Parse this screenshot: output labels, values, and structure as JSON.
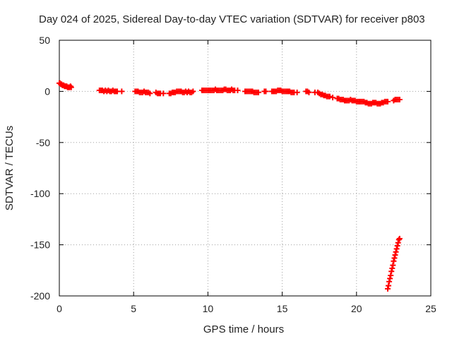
{
  "chart_data": {
    "type": "scatter",
    "title": "Day 024 of 2025, Sidereal Day-to-day VTEC variation (SDTVAR) for receiver p803",
    "xlabel": "GPS time / hours",
    "ylabel": "SDTVAR / TECUs",
    "xlim": [
      0,
      25
    ],
    "ylim": [
      -200,
      50
    ],
    "xticks": [
      0,
      5,
      10,
      15,
      20,
      25
    ],
    "xtick_labels": [
      "0",
      "5",
      "10",
      "15",
      "20",
      "25"
    ],
    "yticks": [
      50,
      0,
      -50,
      -100,
      -150,
      -200
    ],
    "ytick_labels": [
      "50",
      "0",
      "-50",
      "-100",
      "-150",
      "-200"
    ],
    "grid": true,
    "marker": "plus",
    "color": "#ff0000",
    "series": [
      {
        "name": "SDTVAR",
        "x": [
          0.0,
          0.05,
          0.1,
          0.15,
          0.2,
          0.25,
          0.3,
          0.35,
          0.4,
          0.45,
          0.5,
          0.55,
          0.6,
          0.65,
          0.7,
          0.75,
          0.8,
          2.7,
          2.8,
          2.9,
          3.0,
          3.1,
          3.2,
          3.3,
          3.4,
          3.5,
          3.6,
          3.7,
          3.8,
          3.9,
          4.2,
          5.1,
          5.2,
          5.3,
          5.4,
          5.5,
          5.6,
          5.7,
          5.8,
          5.9,
          6.0,
          6.1,
          6.5,
          6.6,
          6.7,
          6.8,
          7.0,
          7.4,
          7.5,
          7.6,
          7.7,
          7.8,
          7.9,
          8.0,
          8.1,
          8.2,
          8.3,
          8.4,
          8.5,
          8.6,
          8.7,
          8.8,
          8.9,
          9.0,
          9.6,
          9.7,
          9.8,
          9.9,
          10.0,
          10.1,
          10.2,
          10.3,
          10.4,
          10.5,
          10.6,
          10.7,
          10.8,
          10.9,
          11.0,
          11.1,
          11.2,
          11.3,
          11.4,
          11.5,
          11.6,
          11.7,
          11.8,
          12.0,
          12.5,
          12.6,
          12.7,
          12.8,
          12.9,
          13.0,
          13.1,
          13.2,
          13.3,
          13.4,
          13.8,
          13.9,
          14.3,
          14.4,
          14.5,
          14.6,
          14.7,
          14.8,
          14.9,
          15.0,
          15.1,
          15.2,
          15.3,
          15.4,
          15.5,
          15.6,
          15.7,
          15.8,
          16.0,
          16.6,
          16.7,
          16.8,
          17.2,
          17.4,
          17.5,
          17.6,
          17.7,
          17.8,
          17.9,
          18.0,
          18.1,
          18.2,
          18.4,
          18.7,
          18.8,
          18.9,
          19.0,
          19.1,
          19.2,
          19.3,
          19.4,
          19.5,
          19.6,
          19.7,
          19.8,
          19.9,
          20.0,
          20.1,
          20.2,
          20.3,
          20.4,
          20.5,
          20.6,
          20.7,
          20.8,
          20.9,
          21.0,
          21.1,
          21.2,
          21.3,
          21.4,
          21.5,
          21.6,
          21.7,
          21.8,
          21.9,
          22.0,
          22.1,
          22.5,
          22.6,
          22.7,
          22.8,
          22.9,
          22.1,
          22.15,
          22.2,
          22.25,
          22.3,
          22.35,
          22.4,
          22.45,
          22.5,
          22.55,
          22.6,
          22.65,
          22.7,
          22.75,
          22.8,
          22.85,
          22.9
        ],
        "y": [
          8,
          8,
          7,
          7,
          6,
          6,
          6,
          5,
          5,
          5,
          5,
          4,
          4,
          4,
          4,
          5,
          4,
          1,
          1,
          1,
          0,
          1,
          0,
          1,
          0,
          0,
          1,
          0,
          0,
          0,
          0,
          0,
          0,
          0,
          -1,
          -1,
          -1,
          0,
          -1,
          -1,
          -1,
          -2,
          -1,
          -2,
          -2,
          -2,
          -2,
          -2,
          -2,
          -1,
          -1,
          -1,
          0,
          0,
          0,
          0,
          -1,
          -1,
          0,
          -1,
          0,
          -1,
          -1,
          0,
          1,
          1,
          1,
          1,
          1,
          1,
          1,
          1,
          1,
          2,
          1,
          1,
          1,
          1,
          1,
          2,
          2,
          1,
          1,
          1,
          2,
          1,
          1,
          1,
          0,
          0,
          0,
          0,
          0,
          0,
          -1,
          -1,
          -1,
          -1,
          0,
          0,
          0,
          0,
          0,
          0,
          1,
          1,
          1,
          0,
          0,
          0,
          0,
          0,
          0,
          -1,
          -1,
          -1,
          -1,
          0,
          0,
          -1,
          -1,
          -1,
          -2,
          -3,
          -3,
          -4,
          -4,
          -5,
          -5,
          -5,
          -6,
          -7,
          -7,
          -8,
          -8,
          -8,
          -9,
          -9,
          -9,
          -9,
          -8,
          -9,
          -9,
          -9,
          -10,
          -10,
          -10,
          -10,
          -10,
          -10,
          -11,
          -11,
          -12,
          -12,
          -12,
          -11,
          -11,
          -11,
          -12,
          -12,
          -12,
          -11,
          -11,
          -10,
          -10,
          -10,
          -9,
          -8,
          -8,
          -8,
          -8,
          -193,
          -190,
          -186,
          -183,
          -180,
          -176,
          -173,
          -170,
          -166,
          -163,
          -160,
          -157,
          -154,
          -151,
          -148,
          -145,
          -144
        ]
      }
    ]
  }
}
